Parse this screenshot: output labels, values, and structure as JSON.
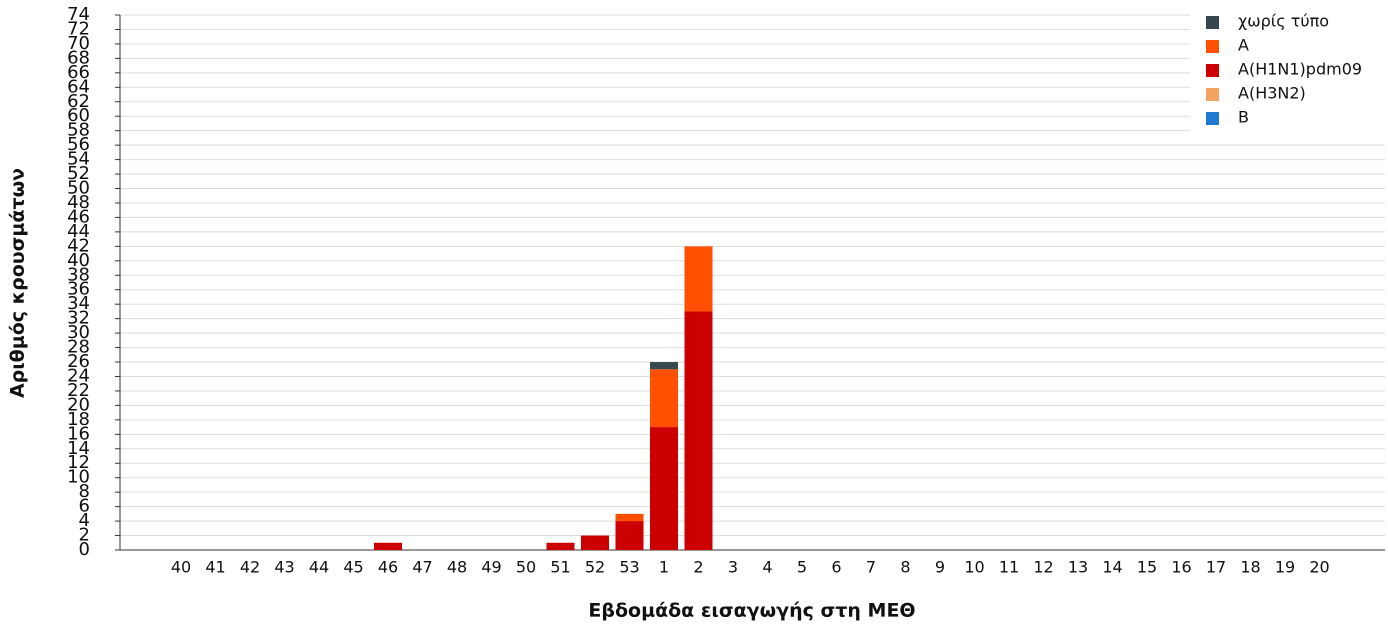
{
  "chart_data": {
    "type": "stacked-bar",
    "x_label": "Εβδομάδα εισαγωγής στη ΜΕΘ",
    "y_label": "Αριθμός κρουσμάτων",
    "categories": [
      "40",
      "41",
      "42",
      "43",
      "44",
      "45",
      "46",
      "47",
      "48",
      "49",
      "50",
      "51",
      "52",
      "53",
      "1",
      "2",
      "3",
      "4",
      "5",
      "6",
      "7",
      "8",
      "9",
      "10",
      "11",
      "12",
      "13",
      "14",
      "15",
      "16",
      "17",
      "18",
      "19",
      "20"
    ],
    "series": [
      {
        "name": "χωρίς τύπο",
        "color": "#37474f",
        "values": [
          0,
          0,
          0,
          0,
          0,
          0,
          0,
          0,
          0,
          0,
          0,
          0,
          0,
          0,
          1,
          0,
          0,
          0,
          0,
          0,
          0,
          0,
          0,
          0,
          0,
          0,
          0,
          0,
          0,
          0,
          0,
          0,
          0,
          0
        ]
      },
      {
        "name": "A",
        "color": "#ff4f00",
        "values": [
          0,
          0,
          0,
          0,
          0,
          0,
          0,
          0,
          0,
          0,
          0,
          0,
          0,
          1,
          8,
          9,
          0,
          0,
          0,
          0,
          0,
          0,
          0,
          0,
          0,
          0,
          0,
          0,
          0,
          0,
          0,
          0,
          0,
          0
        ]
      },
      {
        "name": "A(H1N1)pdm09",
        "color": "#cc0000",
        "values": [
          0,
          0,
          0,
          0,
          0,
          0,
          1,
          0,
          0,
          0,
          0,
          1,
          2,
          4,
          17,
          33,
          0,
          0,
          0,
          0,
          0,
          0,
          0,
          0,
          0,
          0,
          0,
          0,
          0,
          0,
          0,
          0,
          0,
          0
        ]
      },
      {
        "name": "A(H3N2)",
        "color": "#f4a460",
        "values": [
          0,
          0,
          0,
          0,
          0,
          0,
          0,
          0,
          0,
          0,
          0,
          0,
          0,
          0,
          0,
          0,
          0,
          0,
          0,
          0,
          0,
          0,
          0,
          0,
          0,
          0,
          0,
          0,
          0,
          0,
          0,
          0,
          0,
          0
        ]
      },
      {
        "name": "B",
        "color": "#1f78d1",
        "values": [
          0,
          0,
          0,
          0,
          0,
          0,
          0,
          0,
          0,
          0,
          0,
          0,
          0,
          0,
          0,
          0,
          0,
          0,
          0,
          0,
          0,
          0,
          0,
          0,
          0,
          0,
          0,
          0,
          0,
          0,
          0,
          0,
          0,
          0
        ]
      }
    ],
    "ylim": [
      0,
      74
    ],
    "yticks": [
      0,
      2,
      4,
      6,
      8,
      10,
      12,
      14,
      16,
      18,
      20,
      22,
      24,
      26,
      28,
      30,
      32,
      34,
      36,
      38,
      40,
      42,
      44,
      46,
      48,
      50,
      52,
      54,
      56,
      58,
      60,
      62,
      64,
      66,
      68,
      70,
      72,
      74
    ],
    "grid": true,
    "legend": "top-right"
  }
}
